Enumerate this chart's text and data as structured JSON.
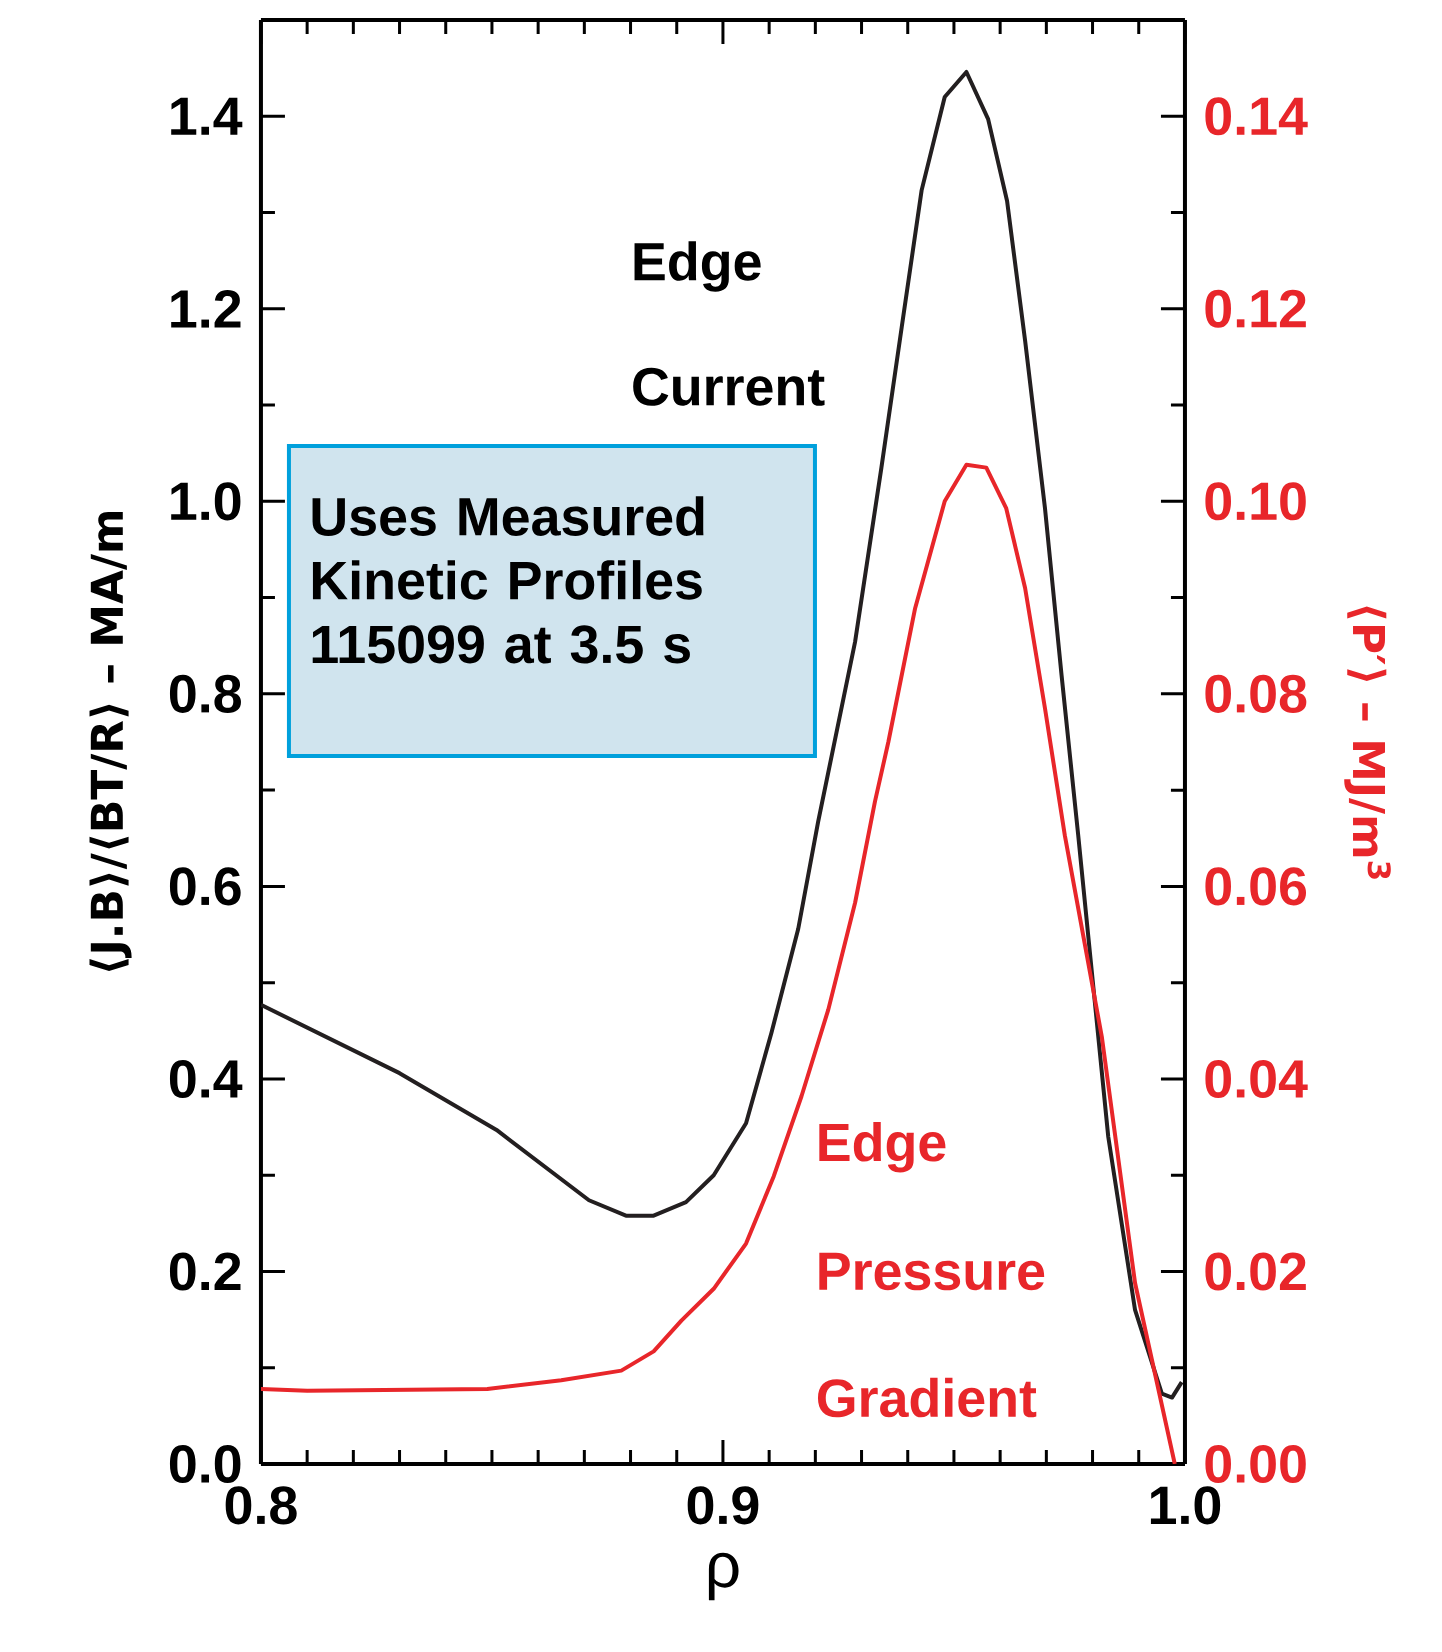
{
  "chart_data": {
    "type": "line",
    "xlabel": "ρ",
    "ylabel": "⟨J.B⟩/⟨BT/R⟩ – MA/m",
    "y2label": "⟨P′⟩ – MJ/m$^{3}$",
    "xlim": [
      0.8,
      1.0
    ],
    "ylim": [
      0,
      1.5
    ],
    "y2lim": [
      0,
      0.15
    ],
    "xticks": [
      {
        "value": 0.8,
        "label": "0.8"
      },
      {
        "value": 0.9,
        "label": "0.9"
      },
      {
        "value": 1.0,
        "label": "1.0"
      }
    ],
    "yticks": [
      {
        "value": 0,
        "label": "0.0"
      },
      {
        "value": 0.2,
        "label": "0.2"
      },
      {
        "value": 0.4,
        "label": "0.4"
      },
      {
        "value": 0.6,
        "label": "0.6"
      },
      {
        "value": 0.8,
        "label": "0.8"
      },
      {
        "value": 1.0,
        "label": "1.0"
      },
      {
        "value": 1.2,
        "label": "1.2"
      },
      {
        "value": 1.4,
        "label": "1.4"
      }
    ],
    "y2ticks": [
      {
        "value": 0,
        "label": "0.00"
      },
      {
        "value": 0.02,
        "label": "0.02"
      },
      {
        "value": 0.04,
        "label": "0.04"
      },
      {
        "value": 0.06,
        "label": "0.06"
      },
      {
        "value": 0.08,
        "label": "0.08"
      },
      {
        "value": 0.1,
        "label": "0.10"
      },
      {
        "value": 0.12,
        "label": "0.12"
      },
      {
        "value": 0.14,
        "label": "0.14"
      }
    ],
    "annotations": [
      "Edge",
      "Current",
      "Uses Measured",
      "Kinetic Profiles",
      "115099 at 3.5 s",
      "Edge",
      "Pressure",
      "Gradient"
    ],
    "marker": "none",
    "line_style": "solid",
    "series": [
      {
        "color": "#231f20",
        "x": [
          0.8,
          0.83,
          0.851,
          0.871,
          0.879,
          0.885,
          0.892,
          0.898,
          0.905,
          0.9105,
          0.9163,
          0.9206,
          0.9286,
          0.9343,
          0.9387,
          0.943,
          0.948,
          0.9527,
          0.9574,
          0.9615,
          0.9654,
          0.9697,
          0.9733,
          0.9769,
          0.9834,
          0.9892,
          0.995,
          0.9972,
          0.9993
        ],
        "values": [
          0.477,
          0.406,
          0.347,
          0.274,
          0.258,
          0.258,
          0.272,
          0.3,
          0.354,
          0.448,
          0.556,
          0.667,
          0.854,
          1.035,
          1.181,
          1.323,
          1.42,
          1.446,
          1.397,
          1.312,
          1.167,
          0.993,
          0.819,
          0.653,
          0.34,
          0.16,
          0.073,
          0.069,
          0.085
        ]
      },
      {
        "color": "#e8262a",
        "axis": "y2",
        "x": [
          0.8,
          0.81,
          0.849,
          0.865,
          0.878,
          0.885,
          0.891,
          0.898,
          0.905,
          0.911,
          0.917,
          0.9228,
          0.9286,
          0.9329,
          0.9358,
          0.9416,
          0.948,
          0.9527,
          0.957,
          0.9613,
          0.9654,
          0.9697,
          0.974,
          0.982,
          0.9892,
          0.9978
        ],
        "values": [
          0.0078,
          0.0076,
          0.0078,
          0.0087,
          0.0097,
          0.0117,
          0.0149,
          0.0182,
          0.0229,
          0.0299,
          0.0382,
          0.0472,
          0.0583,
          0.0688,
          0.075,
          0.0889,
          0.1,
          0.1038,
          0.1035,
          0.0993,
          0.091,
          0.0785,
          0.0653,
          0.0444,
          0.0188,
          0.0
        ]
      }
    ]
  }
}
